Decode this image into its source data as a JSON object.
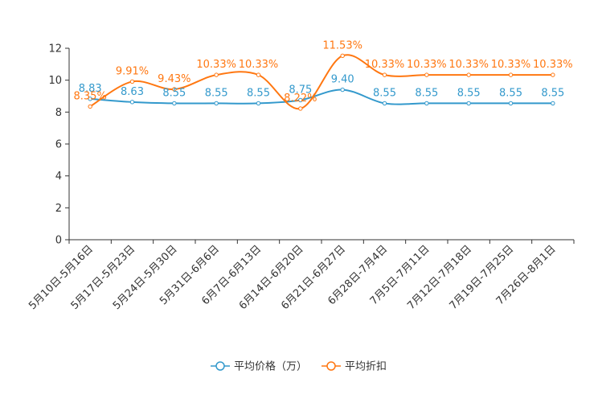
{
  "chart_data": {
    "type": "line",
    "title": "",
    "xlabel": "",
    "ylabel": "",
    "ylim": [
      0,
      12
    ],
    "yticks": [
      0,
      2,
      4,
      6,
      8,
      10,
      12
    ],
    "categories": [
      "5月10日-5月16日",
      "5月17日-5月23日",
      "5月24日-5月30日",
      "5月31日-6月6日",
      "6月7日-6月13日",
      "6月14日-6月20日",
      "6月21日-6月27日",
      "6月28日-7月4日",
      "7月5日-7月11日",
      "7月12日-7月18日",
      "7月19日-7月25日",
      "7月26日-8月1日"
    ],
    "series": [
      {
        "name": "平均价格（万）",
        "color": "#3399cc",
        "values": [
          8.83,
          8.63,
          8.55,
          8.55,
          8.55,
          8.75,
          9.4,
          8.55,
          8.55,
          8.55,
          8.55,
          8.55
        ],
        "labels": [
          "8.83",
          "8.63",
          "8.55",
          "8.55",
          "8.55",
          "8.75",
          "9.40",
          "8.55",
          "8.55",
          "8.55",
          "8.55",
          "8.55"
        ]
      },
      {
        "name": "平均折扣",
        "color": "#ff7711",
        "values": [
          8.35,
          9.91,
          9.43,
          10.33,
          10.33,
          8.22,
          11.53,
          10.33,
          10.33,
          10.33,
          10.33,
          10.33
        ],
        "labels": [
          "8.35%",
          "9.91%",
          "9.43%",
          "10.33%",
          "10.33%",
          "8.22%",
          "11.53%",
          "10.33%",
          "10.33%",
          "10.33%",
          "10.33%",
          "10.33%"
        ]
      }
    ],
    "legend_position": "bottom-center",
    "grid": false
  }
}
